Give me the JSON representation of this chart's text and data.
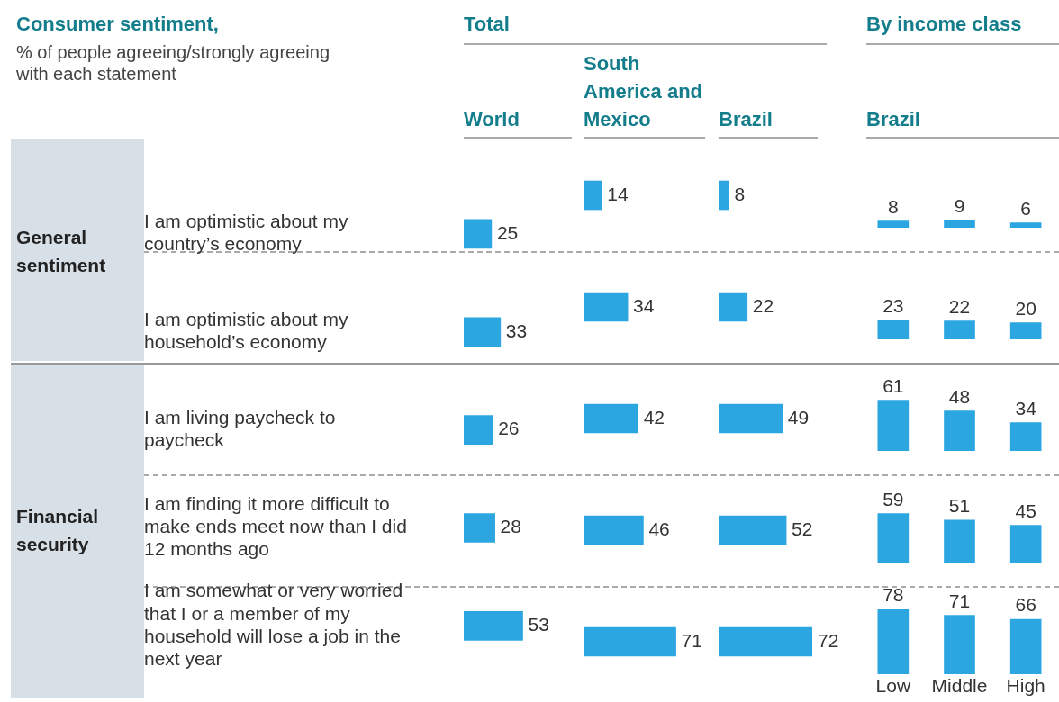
{
  "chart_data": [
    {
      "type": "bar",
      "orientation": "horizontal",
      "title": "World",
      "categories": [
        "I am optimistic about my country’s economy",
        "I am optimistic about my household’s economy",
        "I am living paycheck to paycheck",
        "I am finding it more difficult to make ends meet now than I did 12 months ago",
        "I am somewhat or very worried that I or a member of my household will lose a job in the next year"
      ],
      "values": [
        25,
        33,
        26,
        28,
        53
      ],
      "color": "#2ba6e1",
      "data_labels": true,
      "tick_labels": "y",
      "annotations": [
        "Consumer sentiment,",
        "% of people agreeing/strongly agreeing with each statement",
        "Total",
        "General sentiment",
        "Financial security"
      ]
    },
    {
      "type": "bar",
      "orientation": "horizontal",
      "title": "South America and Mexico",
      "categories": [
        null,
        null,
        null,
        null,
        null
      ],
      "values": [
        14,
        34,
        42,
        46,
        71
      ],
      "color": "#2ba6e1",
      "data_labels": true,
      "tick_labels": false
    },
    {
      "type": "bar",
      "orientation": "horizontal",
      "title": "Brazil",
      "categories": [
        null,
        null,
        null,
        null,
        null
      ],
      "values": [
        8,
        22,
        49,
        52,
        72
      ],
      "color": "#2ba6e1",
      "data_labels": true,
      "tick_labels": false
    },
    {
      "type": "bar",
      "title": "Brazil",
      "categories": [
        null,
        null,
        null
      ],
      "values": [
        8,
        9,
        6
      ],
      "color": "#2ba6e1",
      "data_labels": true,
      "tick_labels": false,
      "annotations": [
        "By income class"
      ]
    },
    {
      "type": "bar",
      "categories": [
        null,
        null,
        null
      ],
      "values": [
        23,
        22,
        20
      ],
      "color": "#2ba6e1",
      "data_labels": true,
      "tick_labels": false
    },
    {
      "type": "bar",
      "categories": [
        null,
        null,
        null
      ],
      "values": [
        61,
        48,
        34
      ],
      "color": "#2ba6e1",
      "data_labels": true,
      "tick_labels": false
    },
    {
      "type": "bar",
      "categories": [
        null,
        null,
        null
      ],
      "values": [
        59,
        51,
        45
      ],
      "color": "#2ba6e1",
      "data_labels": true,
      "tick_labels": false
    },
    {
      "type": "bar",
      "categories": [
        "Low",
        "Middle",
        "High"
      ],
      "values": [
        78,
        71,
        66
      ],
      "color": "#2ba6e1",
      "data_labels": true,
      "tick_labels": "x"
    }
  ]
}
